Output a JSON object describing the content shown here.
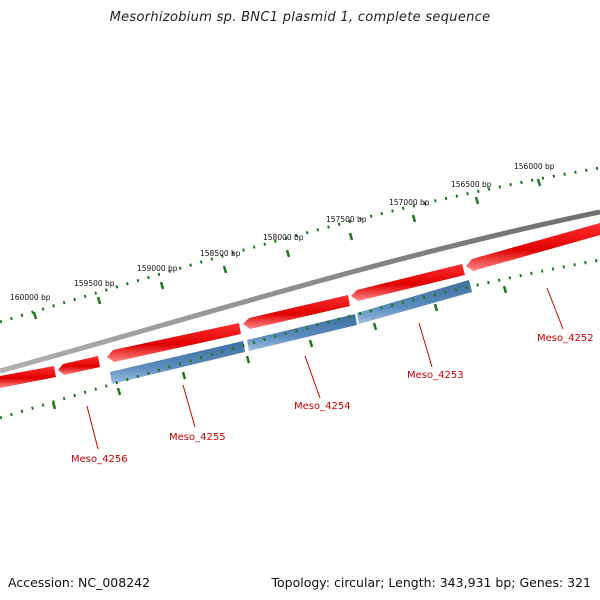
{
  "title": "Mesorhizobium sp. BNC1 plasmid 1, complete sequence",
  "footer": {
    "accession": "Accession: NC_008242",
    "summary": "Topology: circular; Length: 343,931 bp; Genes: 321"
  },
  "colors": {
    "backbone": "#808080",
    "forward_gene": "#ee0000",
    "reverse_gene": "#4d7fb0",
    "ticks": "#1e7a1e",
    "label": "#cc0000"
  },
  "scale": {
    "labels": [
      "156000 bp",
      "156500 bp",
      "157000 bp",
      "157500 bp",
      "158000 bp",
      "158500 bp",
      "159000 bp",
      "159500 bp",
      "160000 bp"
    ]
  },
  "gene_labels": [
    "Meso_4252",
    "Meso_4253",
    "Meso_4254",
    "Meso_4255",
    "Meso_4256"
  ]
}
